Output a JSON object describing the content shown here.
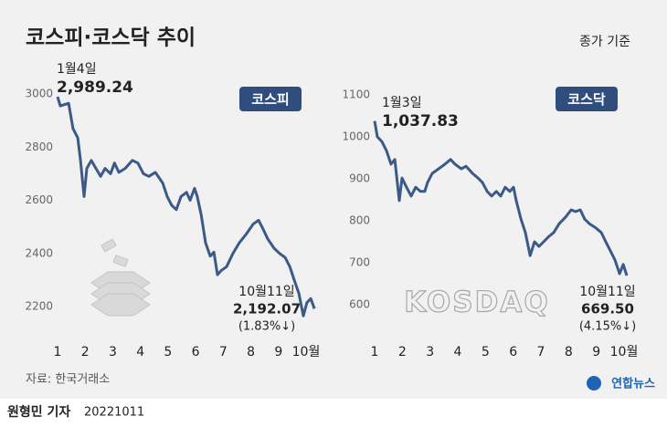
{
  "title": "코스피·코스닥 추이",
  "subtitle": "종가 기준",
  "source": "자료: 한국거래소",
  "logo": "연합뉴스",
  "byline": "원형민 기자",
  "date": "20221011",
  "chart_data": [
    {
      "type": "line",
      "badge": "코스피",
      "color": "#3b5a87",
      "grid": false,
      "x": [
        1.0,
        1.1,
        1.4,
        1.56,
        1.73,
        1.83,
        1.96,
        2.06,
        2.22,
        2.39,
        2.56,
        2.72,
        2.92,
        3.06,
        3.22,
        3.45,
        3.71,
        3.91,
        4.11,
        4.31,
        4.54,
        4.81,
        4.97,
        5.14,
        5.3,
        5.47,
        5.67,
        5.8,
        5.96,
        6.06,
        6.2,
        6.36,
        6.53,
        6.66,
        6.79,
        6.92,
        7.12,
        7.35,
        7.58,
        7.85,
        8.08,
        8.28,
        8.45,
        8.61,
        8.84,
        9.04,
        9.24,
        9.41,
        9.57,
        9.74,
        9.9,
        10.03,
        10.17,
        10.3
      ],
      "values": [
        2989.24,
        2955,
        2965,
        2870,
        2835,
        2750,
        2614,
        2720,
        2750,
        2720,
        2690,
        2720,
        2700,
        2740,
        2705,
        2720,
        2750,
        2740,
        2700,
        2690,
        2705,
        2665,
        2614,
        2580,
        2565,
        2614,
        2630,
        2600,
        2645,
        2614,
        2545,
        2440,
        2390,
        2405,
        2320,
        2335,
        2350,
        2400,
        2440,
        2475,
        2510,
        2525,
        2490,
        2455,
        2420,
        2400,
        2385,
        2350,
        2300,
        2250,
        2165,
        2215,
        2230,
        2192.07
      ],
      "xlim": [
        1,
        10
      ],
      "ylim": [
        2150,
        3000
      ],
      "xticks": [
        1,
        2,
        3,
        4,
        5,
        6,
        7,
        8,
        9,
        {
          "value": 10,
          "label": "10월"
        }
      ],
      "yticks": [
        2200,
        2400,
        2600,
        2800,
        3000
      ],
      "annotations": [
        "1월4일",
        "2,989.24",
        "10월11일",
        "2,192.07",
        "(1.83%↓)"
      ]
    },
    {
      "type": "line",
      "badge": "코스닥",
      "watermark": "KOSDAQ",
      "color": "#3b5a87",
      "grid": false,
      "x": [
        1.0,
        1.1,
        1.26,
        1.43,
        1.59,
        1.73,
        1.89,
        1.99,
        2.15,
        2.32,
        2.48,
        2.65,
        2.81,
        2.91,
        3.08,
        3.31,
        3.54,
        3.74,
        3.9,
        4.13,
        4.3,
        4.53,
        4.73,
        4.89,
        5.06,
        5.22,
        5.39,
        5.55,
        5.71,
        5.88,
        6.01,
        6.11,
        6.28,
        6.44,
        6.61,
        6.77,
        6.93,
        7.1,
        7.26,
        7.46,
        7.66,
        7.89,
        8.09,
        8.25,
        8.42,
        8.58,
        8.75,
        8.98,
        9.18,
        9.34,
        9.51,
        9.67,
        9.84,
        9.97,
        10.1
      ],
      "values": [
        1037.83,
        1000,
        989,
        967,
        935,
        946,
        848,
        902,
        880,
        859,
        880,
        870,
        870,
        891,
        913,
        924,
        935,
        946,
        935,
        924,
        930,
        913,
        902,
        891,
        870,
        859,
        870,
        859,
        880,
        870,
        880,
        848,
        804,
        772,
        717,
        750,
        739,
        750,
        761,
        772,
        793,
        809,
        826,
        822,
        826,
        804,
        793,
        783,
        772,
        750,
        728,
        707,
        674,
        696,
        669.5
      ],
      "xlim": [
        1,
        10
      ],
      "ylim": [
        600,
        1100
      ],
      "xticks": [
        1,
        2,
        3,
        4,
        5,
        6,
        7,
        8,
        9,
        {
          "value": 10,
          "label": "10월"
        }
      ],
      "yticks": [
        600,
        700,
        800,
        900,
        1000,
        1100
      ],
      "annotations": [
        "1월3일",
        "1,037.83",
        "10월11일",
        "669.50",
        "(4.15%↓)"
      ]
    }
  ]
}
